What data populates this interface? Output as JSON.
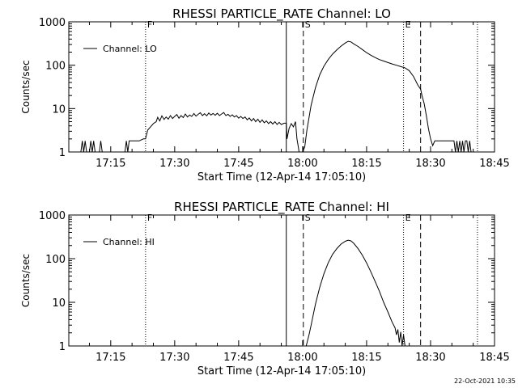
{
  "footer": {
    "timestamp": "22-Oct-2021 10:35"
  },
  "chart_data": [
    {
      "type": "line",
      "title": "RHESSI PARTICLE_RATE Channel: LO",
      "xlabel": "Start Time (12-Apr-14 17:05:10)",
      "ylabel": "Counts/sec",
      "xlim": [
        "17:05:10",
        "18:45:00"
      ],
      "x_ticks": [
        "17:15",
        "17:30",
        "17:45",
        "18:00",
        "18:15",
        "18:30",
        "18:45"
      ],
      "y_scale": "log",
      "ylim": [
        1,
        1000
      ],
      "y_ticks": [
        "1",
        "10",
        "100",
        "1000"
      ],
      "legend": {
        "label": "Channel: LO",
        "placement": "top-left"
      },
      "markers": [
        {
          "time": "17:23:10",
          "style": "dotted",
          "label": "F"
        },
        {
          "time": "17:56:10",
          "style": "solid",
          "label": ""
        },
        {
          "time": "18:00:10",
          "style": "dashed",
          "label": "S"
        },
        {
          "time": "18:23:40",
          "style": "dotted",
          "label": "E"
        },
        {
          "time": "18:27:40",
          "style": "dashed",
          "label": ""
        },
        {
          "time": "18:41:00",
          "style": "dotted",
          "label": ""
        }
      ],
      "series": [
        {
          "name": "Channel: LO",
          "points": [
            [
              "17:05:10",
              1
            ],
            [
              "17:08:00",
              1
            ],
            [
              "17:08:20",
              1.8
            ],
            [
              "17:08:40",
              1
            ],
            [
              "17:09:00",
              1.8
            ],
            [
              "17:09:20",
              1
            ],
            [
              "17:10:00",
              1
            ],
            [
              "17:10:20",
              1.8
            ],
            [
              "17:10:40",
              1
            ],
            [
              "17:11:00",
              1.8
            ],
            [
              "17:11:20",
              1
            ],
            [
              "17:12:20",
              1
            ],
            [
              "17:12:40",
              1.8
            ],
            [
              "17:13:00",
              1
            ],
            [
              "17:18:20",
              1
            ],
            [
              "17:18:40",
              1.8
            ],
            [
              "17:19:00",
              1
            ],
            [
              "17:19:20",
              1.8
            ],
            [
              "17:19:40",
              1.8
            ],
            [
              "17:20:00",
              1.8
            ],
            [
              "17:20:20",
              1.8
            ],
            [
              "17:20:40",
              1.8
            ],
            [
              "17:21:40",
              1.8
            ],
            [
              "17:22:40",
              2.0
            ],
            [
              "17:23:10",
              2.0
            ],
            [
              "17:23:40",
              3.2
            ],
            [
              "17:24:20",
              3.8
            ],
            [
              "17:25:00",
              4.5
            ],
            [
              "17:25:40",
              5.0
            ],
            [
              "17:26:00",
              6.3
            ],
            [
              "17:26:30",
              5.2
            ],
            [
              "17:27:00",
              6.8
            ],
            [
              "17:27:30",
              5.6
            ],
            [
              "17:28:00",
              6.4
            ],
            [
              "17:28:30",
              5.7
            ],
            [
              "17:29:00",
              6.9
            ],
            [
              "17:29:30",
              5.9
            ],
            [
              "17:30:00",
              6.6
            ],
            [
              "17:30:30",
              7.3
            ],
            [
              "17:31:00",
              6.0
            ],
            [
              "17:31:30",
              6.9
            ],
            [
              "17:32:00",
              6.2
            ],
            [
              "17:32:30",
              7.5
            ],
            [
              "17:33:00",
              6.4
            ],
            [
              "17:33:30",
              7.1
            ],
            [
              "17:34:00",
              6.6
            ],
            [
              "17:34:30",
              7.7
            ],
            [
              "17:35:00",
              6.7
            ],
            [
              "17:35:30",
              7.4
            ],
            [
              "17:36:00",
              8.0
            ],
            [
              "17:36:30",
              6.9
            ],
            [
              "17:37:00",
              7.6
            ],
            [
              "17:37:30",
              6.8
            ],
            [
              "17:38:00",
              7.9
            ],
            [
              "17:38:30",
              7.1
            ],
            [
              "17:39:00",
              7.7
            ],
            [
              "17:39:30",
              7.0
            ],
            [
              "17:40:00",
              7.8
            ],
            [
              "17:40:30",
              6.9
            ],
            [
              "17:41:00",
              7.5
            ],
            [
              "17:41:30",
              8.1
            ],
            [
              "17:42:00",
              6.9
            ],
            [
              "17:42:30",
              7.4
            ],
            [
              "17:43:00",
              6.6
            ],
            [
              "17:43:30",
              7.2
            ],
            [
              "17:44:00",
              6.4
            ],
            [
              "17:44:30",
              6.9
            ],
            [
              "17:45:00",
              6.0
            ],
            [
              "17:45:30",
              6.6
            ],
            [
              "17:46:00",
              5.9
            ],
            [
              "17:46:30",
              6.4
            ],
            [
              "17:47:00",
              5.5
            ],
            [
              "17:47:30",
              6.1
            ],
            [
              "17:48:00",
              5.2
            ],
            [
              "17:48:30",
              5.9
            ],
            [
              "17:49:00",
              5.0
            ],
            [
              "17:49:30",
              5.7
            ],
            [
              "17:50:00",
              4.8
            ],
            [
              "17:50:30",
              5.5
            ],
            [
              "17:51:00",
              4.7
            ],
            [
              "17:51:30",
              5.2
            ],
            [
              "17:52:00",
              4.5
            ],
            [
              "17:52:30",
              5.0
            ],
            [
              "17:53:00",
              4.4
            ],
            [
              "17:53:30",
              5.0
            ],
            [
              "17:54:00",
              4.3
            ],
            [
              "17:54:30",
              4.8
            ],
            [
              "17:55:00",
              4.3
            ],
            [
              "17:55:40",
              4.6
            ],
            [
              "17:56:10",
              4.6
            ],
            [
              "17:56:20",
              2.0
            ],
            [
              "17:56:50",
              3.5
            ],
            [
              "17:57:20",
              4.5
            ],
            [
              "17:57:50",
              3.8
            ],
            [
              "17:58:20",
              5.0
            ],
            [
              "17:58:40",
              2.0
            ],
            [
              "17:59:00",
              1.3
            ],
            [
              "17:59:10",
              1
            ],
            [
              "18:00:00",
              1
            ],
            [
              "18:00:30",
              1.3
            ],
            [
              "18:01:00",
              3.2
            ],
            [
              "18:02:00",
              12
            ],
            [
              "18:03:00",
              30
            ],
            [
              "18:04:00",
              60
            ],
            [
              "18:05:00",
              95
            ],
            [
              "18:06:00",
              135
            ],
            [
              "18:07:00",
              180
            ],
            [
              "18:08:00",
              225
            ],
            [
              "18:09:00",
              275
            ],
            [
              "18:10:00",
              325
            ],
            [
              "18:10:40",
              355
            ],
            [
              "18:11:20",
              345
            ],
            [
              "18:12:00",
              310
            ],
            [
              "18:13:00",
              270
            ],
            [
              "18:14:00",
              230
            ],
            [
              "18:15:00",
              195
            ],
            [
              "18:16:00",
              170
            ],
            [
              "18:17:00",
              150
            ],
            [
              "18:18:00",
              135
            ],
            [
              "18:19:00",
              125
            ],
            [
              "18:20:00",
              115
            ],
            [
              "18:21:00",
              107
            ],
            [
              "18:22:00",
              100
            ],
            [
              "18:23:00",
              93
            ],
            [
              "18:24:00",
              87
            ],
            [
              "18:25:00",
              75
            ],
            [
              "18:26:00",
              55
            ],
            [
              "18:27:00",
              35
            ],
            [
              "18:27:40",
              28
            ],
            [
              "18:28:00",
              20
            ],
            [
              "18:28:30",
              13
            ],
            [
              "18:29:00",
              7
            ],
            [
              "18:29:30",
              3.5
            ],
            [
              "18:30:00",
              2
            ],
            [
              "18:30:30",
              1.4
            ],
            [
              "18:31:00",
              1.8
            ],
            [
              "18:35:30",
              1.8
            ],
            [
              "18:35:50",
              1
            ],
            [
              "18:36:10",
              1.8
            ],
            [
              "18:36:30",
              1
            ],
            [
              "18:36:50",
              1.8
            ],
            [
              "18:37:10",
              1
            ],
            [
              "18:37:30",
              1.8
            ],
            [
              "18:37:50",
              1
            ],
            [
              "18:38:10",
              1.8
            ],
            [
              "18:38:30",
              1.8
            ],
            [
              "18:38:50",
              1
            ],
            [
              "18:39:10",
              1.8
            ],
            [
              "18:39:30",
              1
            ],
            [
              "18:45:00",
              1
            ]
          ]
        }
      ]
    },
    {
      "type": "line",
      "title": "RHESSI PARTICLE_RATE Channel: HI",
      "xlabel": "Start Time (12-Apr-14 17:05:10)",
      "ylabel": "Counts/sec",
      "xlim": [
        "17:05:10",
        "18:45:00"
      ],
      "x_ticks": [
        "17:15",
        "17:30",
        "17:45",
        "18:00",
        "18:15",
        "18:30",
        "18:45"
      ],
      "y_scale": "log",
      "ylim": [
        1,
        1000
      ],
      "y_ticks": [
        "1",
        "10",
        "100",
        "1000"
      ],
      "legend": {
        "label": "Channel: HI",
        "placement": "top-left"
      },
      "markers": [
        {
          "time": "17:23:10",
          "style": "dotted",
          "label": "F"
        },
        {
          "time": "17:56:10",
          "style": "solid",
          "label": ""
        },
        {
          "time": "18:00:10",
          "style": "dashed",
          "label": "S"
        },
        {
          "time": "18:23:40",
          "style": "dotted",
          "label": "E"
        },
        {
          "time": "18:27:40",
          "style": "dashed",
          "label": ""
        },
        {
          "time": "18:41:00",
          "style": "dotted",
          "label": ""
        }
      ],
      "series": [
        {
          "name": "Channel: HI",
          "points": [
            [
              "18:00:50",
              1
            ],
            [
              "18:01:30",
              1.8
            ],
            [
              "18:02:00",
              3
            ],
            [
              "18:03:00",
              9
            ],
            [
              "18:04:00",
              22
            ],
            [
              "18:05:00",
              45
            ],
            [
              "18:06:00",
              80
            ],
            [
              "18:07:00",
              125
            ],
            [
              "18:08:00",
              170
            ],
            [
              "18:09:00",
              215
            ],
            [
              "18:10:00",
              250
            ],
            [
              "18:10:40",
              265
            ],
            [
              "18:11:20",
              255
            ],
            [
              "18:12:00",
              225
            ],
            [
              "18:13:00",
              170
            ],
            [
              "18:14:00",
              120
            ],
            [
              "18:15:00",
              80
            ],
            [
              "18:16:00",
              50
            ],
            [
              "18:17:00",
              30
            ],
            [
              "18:18:00",
              18
            ],
            [
              "18:19:00",
              10
            ],
            [
              "18:20:00",
              6
            ],
            [
              "18:21:00",
              3.5
            ],
            [
              "18:21:40",
              2.6
            ],
            [
              "18:22:00",
              1.8
            ],
            [
              "18:22:20",
              2.4
            ],
            [
              "18:22:40",
              1.2
            ],
            [
              "18:23:00",
              2.1
            ],
            [
              "18:23:20",
              1
            ],
            [
              "18:23:40",
              1.8
            ],
            [
              "18:24:00",
              1
            ]
          ]
        }
      ]
    }
  ]
}
